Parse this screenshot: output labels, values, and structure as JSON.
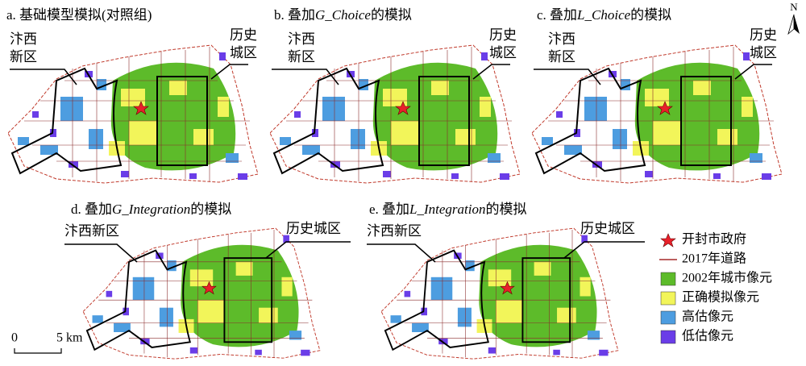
{
  "panels": [
    {
      "title": [
        "a. 基础模型模拟(对照组)"
      ],
      "labels": [
        [
          "汴西",
          "新区"
        ],
        [
          "历史",
          "城区"
        ]
      ]
    },
    {
      "title": [
        "b. 叠加",
        "G_Choice",
        "的模拟"
      ],
      "labels": [
        [
          "汴西",
          "新区"
        ],
        [
          "历史",
          "城区"
        ]
      ]
    },
    {
      "title": [
        "c. 叠加",
        "L_Choice",
        "的模拟"
      ],
      "labels": [
        [
          "汴西",
          "新区"
        ],
        [
          "历史",
          "城区"
        ]
      ]
    },
    {
      "title": [
        "d. 叠加",
        "G_Integration",
        "的模拟"
      ],
      "labels": [
        [
          "汴西新区"
        ],
        [
          "历史城区"
        ]
      ]
    },
    {
      "title": [
        "e. 叠加",
        "L_Integration",
        "的模拟"
      ],
      "labels": [
        [
          "汴西新区"
        ],
        [
          "历史城区"
        ]
      ]
    }
  ],
  "legend": [
    {
      "label": "开封市政府",
      "symbol": "star",
      "color": "#e8202a"
    },
    {
      "label": "2017年道路",
      "symbol": "line",
      "color": "#a52a2a"
    },
    {
      "label": "2002年城市像元",
      "symbol": "box",
      "color": "#5dbb2a"
    },
    {
      "label": "正确模拟像元",
      "symbol": "box",
      "color": "#f2f55a"
    },
    {
      "label": "高估像元",
      "symbol": "box",
      "color": "#4d9de0"
    },
    {
      "label": "低估像元",
      "symbol": "box",
      "color": "#6a3de8"
    }
  ],
  "scale_bar": {
    "start": "0",
    "end": "5 km"
  },
  "north_arrow": "N"
}
